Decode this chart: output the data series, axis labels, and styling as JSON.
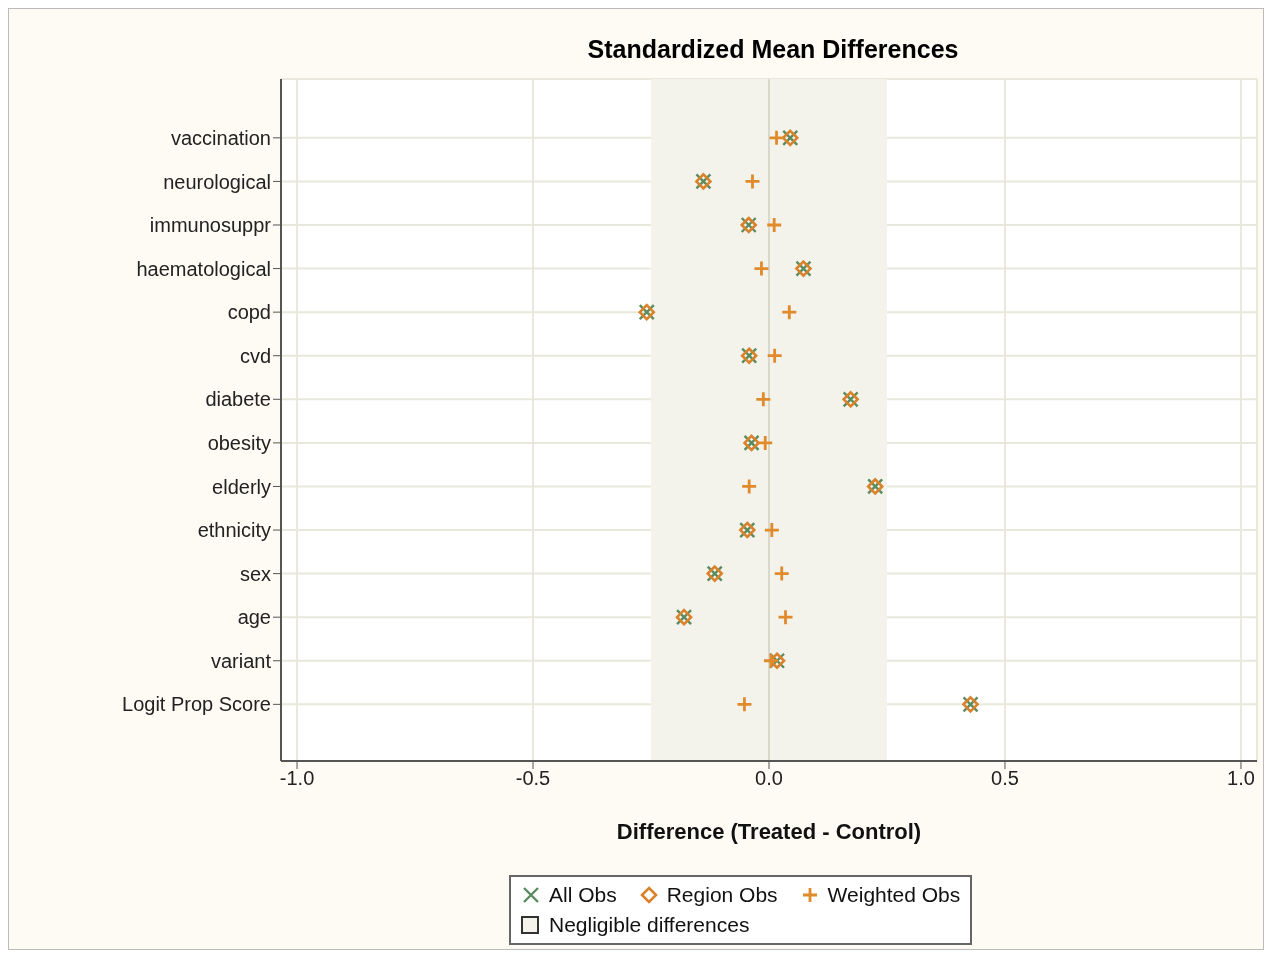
{
  "chart_data": {
    "type": "scatter",
    "title": "Standardized Mean Differences",
    "xlabel": "Difference (Treated - Control)",
    "orientation": "horizontal",
    "categories": [
      "vaccination",
      "neurological",
      "immunosuppr",
      "haematological",
      "copd",
      "cvd",
      "diabete",
      "obesity",
      "elderly",
      "ethnicity",
      "sex",
      "age",
      "variant",
      "Logit Prop Score"
    ],
    "series": [
      {
        "name": "All Obs",
        "color": "#5b8c5f",
        "values": [
          0.045,
          -0.139,
          -0.043,
          0.073,
          -0.259,
          -0.042,
          0.173,
          -0.037,
          0.225,
          -0.046,
          -0.115,
          -0.18,
          0.017,
          0.427
        ]
      },
      {
        "name": "Region Obs",
        "color": "#d9822b",
        "marker": "diamond",
        "values": [
          0.045,
          -0.139,
          -0.043,
          0.073,
          -0.259,
          -0.042,
          0.173,
          -0.037,
          0.225,
          -0.046,
          -0.115,
          -0.18,
          0.017,
          0.427
        ]
      },
      {
        "name": "Weighted Obs",
        "color": "#e08a2b",
        "marker": "cross",
        "values": [
          0.016,
          -0.035,
          0.011,
          -0.016,
          0.043,
          0.012,
          -0.012,
          -0.008,
          -0.042,
          0.006,
          0.027,
          0.035,
          0.004,
          -0.052
        ]
      }
    ],
    "bands": [
      {
        "axis": "x",
        "from": -0.25,
        "to": 0.25,
        "label": "Negligible differences",
        "color": "#f3f3ec"
      }
    ],
    "xlim": [
      -1.034,
      1.034
    ],
    "xticks": [
      {
        "value": -1,
        "label": "-1.0"
      },
      {
        "value": -0.5,
        "label": "-0.5"
      },
      {
        "value": 0,
        "label": "0.0"
      },
      {
        "value": 0.5,
        "label": "0.5"
      },
      {
        "value": 1,
        "label": "1.0"
      }
    ],
    "grid": true,
    "legend": "bottom"
  }
}
